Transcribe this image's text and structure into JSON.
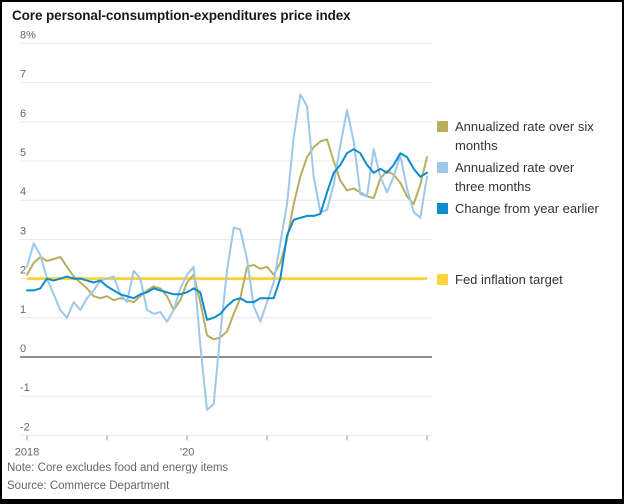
{
  "title": "Core personal-consumption-expenditures price index",
  "note": "Note: Core excludes food and energy items",
  "source": "Source: Commerce Department",
  "legend": {
    "six_month": "Annualized rate over six months",
    "three_month": "Annualized rate over three months",
    "yoy": "Change from year earlier",
    "target": "Fed inflation target"
  },
  "colors": {
    "six_month": "#b9ae5f",
    "three_month": "#9dc8ea",
    "yoy": "#0e8ccd",
    "target": "#ffd23f",
    "gridline": "#e8e8e8",
    "zero_line": "#8f8f8f",
    "axis_text": "#666666",
    "title_text": "#1a1a1a"
  },
  "chart_data": {
    "type": "line",
    "title": "Core personal-consumption-expenditures price index",
    "xlabel": "",
    "ylabel": "percent",
    "ylim": [
      -2,
      8
    ],
    "grid": true,
    "legend_position": "right",
    "x_unit": "monthly",
    "x_start": "2018-01",
    "x_end": "2023-01",
    "y_ticks": [
      {
        "v": 8,
        "label": "8%"
      },
      {
        "v": 7,
        "label": "7"
      },
      {
        "v": 6,
        "label": "6"
      },
      {
        "v": 5,
        "label": "5"
      },
      {
        "v": 4,
        "label": "4"
      },
      {
        "v": 3,
        "label": "3"
      },
      {
        "v": 2,
        "label": "2"
      },
      {
        "v": 1,
        "label": "1"
      },
      {
        "v": 0,
        "label": "0"
      },
      {
        "v": -1,
        "label": "-1"
      },
      {
        "v": -2,
        "label": "-2"
      }
    ],
    "x_ticks": [
      {
        "m": 0,
        "label": "2018"
      },
      {
        "m": 12,
        "label": ""
      },
      {
        "m": 24,
        "label": "’20"
      },
      {
        "m": 36,
        "label": ""
      },
      {
        "m": 48,
        "label": ""
      },
      {
        "m": 60,
        "label": ""
      }
    ],
    "target": {
      "label": "Fed inflation target",
      "value": 2
    },
    "series": [
      {
        "key": "six_month",
        "name": "Annualized rate over six months",
        "values": [
          2.1,
          2.4,
          2.55,
          2.45,
          2.5,
          2.55,
          2.3,
          2.05,
          1.9,
          1.75,
          1.55,
          1.5,
          1.55,
          1.45,
          1.5,
          1.45,
          1.4,
          1.55,
          1.7,
          1.8,
          1.75,
          1.55,
          1.2,
          1.45,
          1.9,
          2.1,
          1.4,
          0.55,
          0.45,
          0.5,
          0.65,
          1.1,
          1.5,
          2.3,
          2.35,
          2.25,
          2.3,
          2.1,
          2.4,
          3.0,
          3.9,
          4.6,
          5.1,
          5.35,
          5.5,
          5.55,
          5.0,
          4.5,
          4.25,
          4.3,
          4.2,
          4.1,
          4.05,
          4.55,
          4.75,
          4.65,
          4.45,
          4.1,
          3.9,
          4.4,
          5.1
        ]
      },
      {
        "key": "three_month",
        "name": "Annualized rate over three months",
        "values": [
          2.3,
          2.9,
          2.6,
          2.0,
          1.6,
          1.2,
          1.0,
          1.4,
          1.2,
          1.5,
          1.7,
          1.95,
          2.0,
          2.05,
          1.6,
          1.4,
          2.2,
          2.0,
          1.2,
          1.1,
          1.15,
          0.9,
          1.2,
          1.75,
          2.1,
          2.3,
          0.3,
          -1.35,
          -1.2,
          0.6,
          2.2,
          3.3,
          3.25,
          2.5,
          1.3,
          0.9,
          1.4,
          1.9,
          2.9,
          3.9,
          5.6,
          6.7,
          6.4,
          4.6,
          3.7,
          3.75,
          4.4,
          5.4,
          6.3,
          5.5,
          4.15,
          4.1,
          5.3,
          4.6,
          4.2,
          4.6,
          5.15,
          4.3,
          3.7,
          3.55,
          4.6
        ]
      },
      {
        "key": "yoy",
        "name": "Change from year earlier",
        "values": [
          1.7,
          1.7,
          1.75,
          2.0,
          1.95,
          2.0,
          2.05,
          2.0,
          2.0,
          1.95,
          1.9,
          1.95,
          1.8,
          1.7,
          1.6,
          1.55,
          1.5,
          1.6,
          1.65,
          1.75,
          1.7,
          1.65,
          1.6,
          1.6,
          1.65,
          1.75,
          1.65,
          0.95,
          1.0,
          1.1,
          1.3,
          1.45,
          1.5,
          1.4,
          1.4,
          1.5,
          1.5,
          1.5,
          2.0,
          3.1,
          3.5,
          3.55,
          3.6,
          3.6,
          3.65,
          4.2,
          4.7,
          4.9,
          5.2,
          5.3,
          5.2,
          4.9,
          4.7,
          4.8,
          4.7,
          4.9,
          5.2,
          5.1,
          4.8,
          4.6,
          4.7
        ]
      }
    ]
  }
}
